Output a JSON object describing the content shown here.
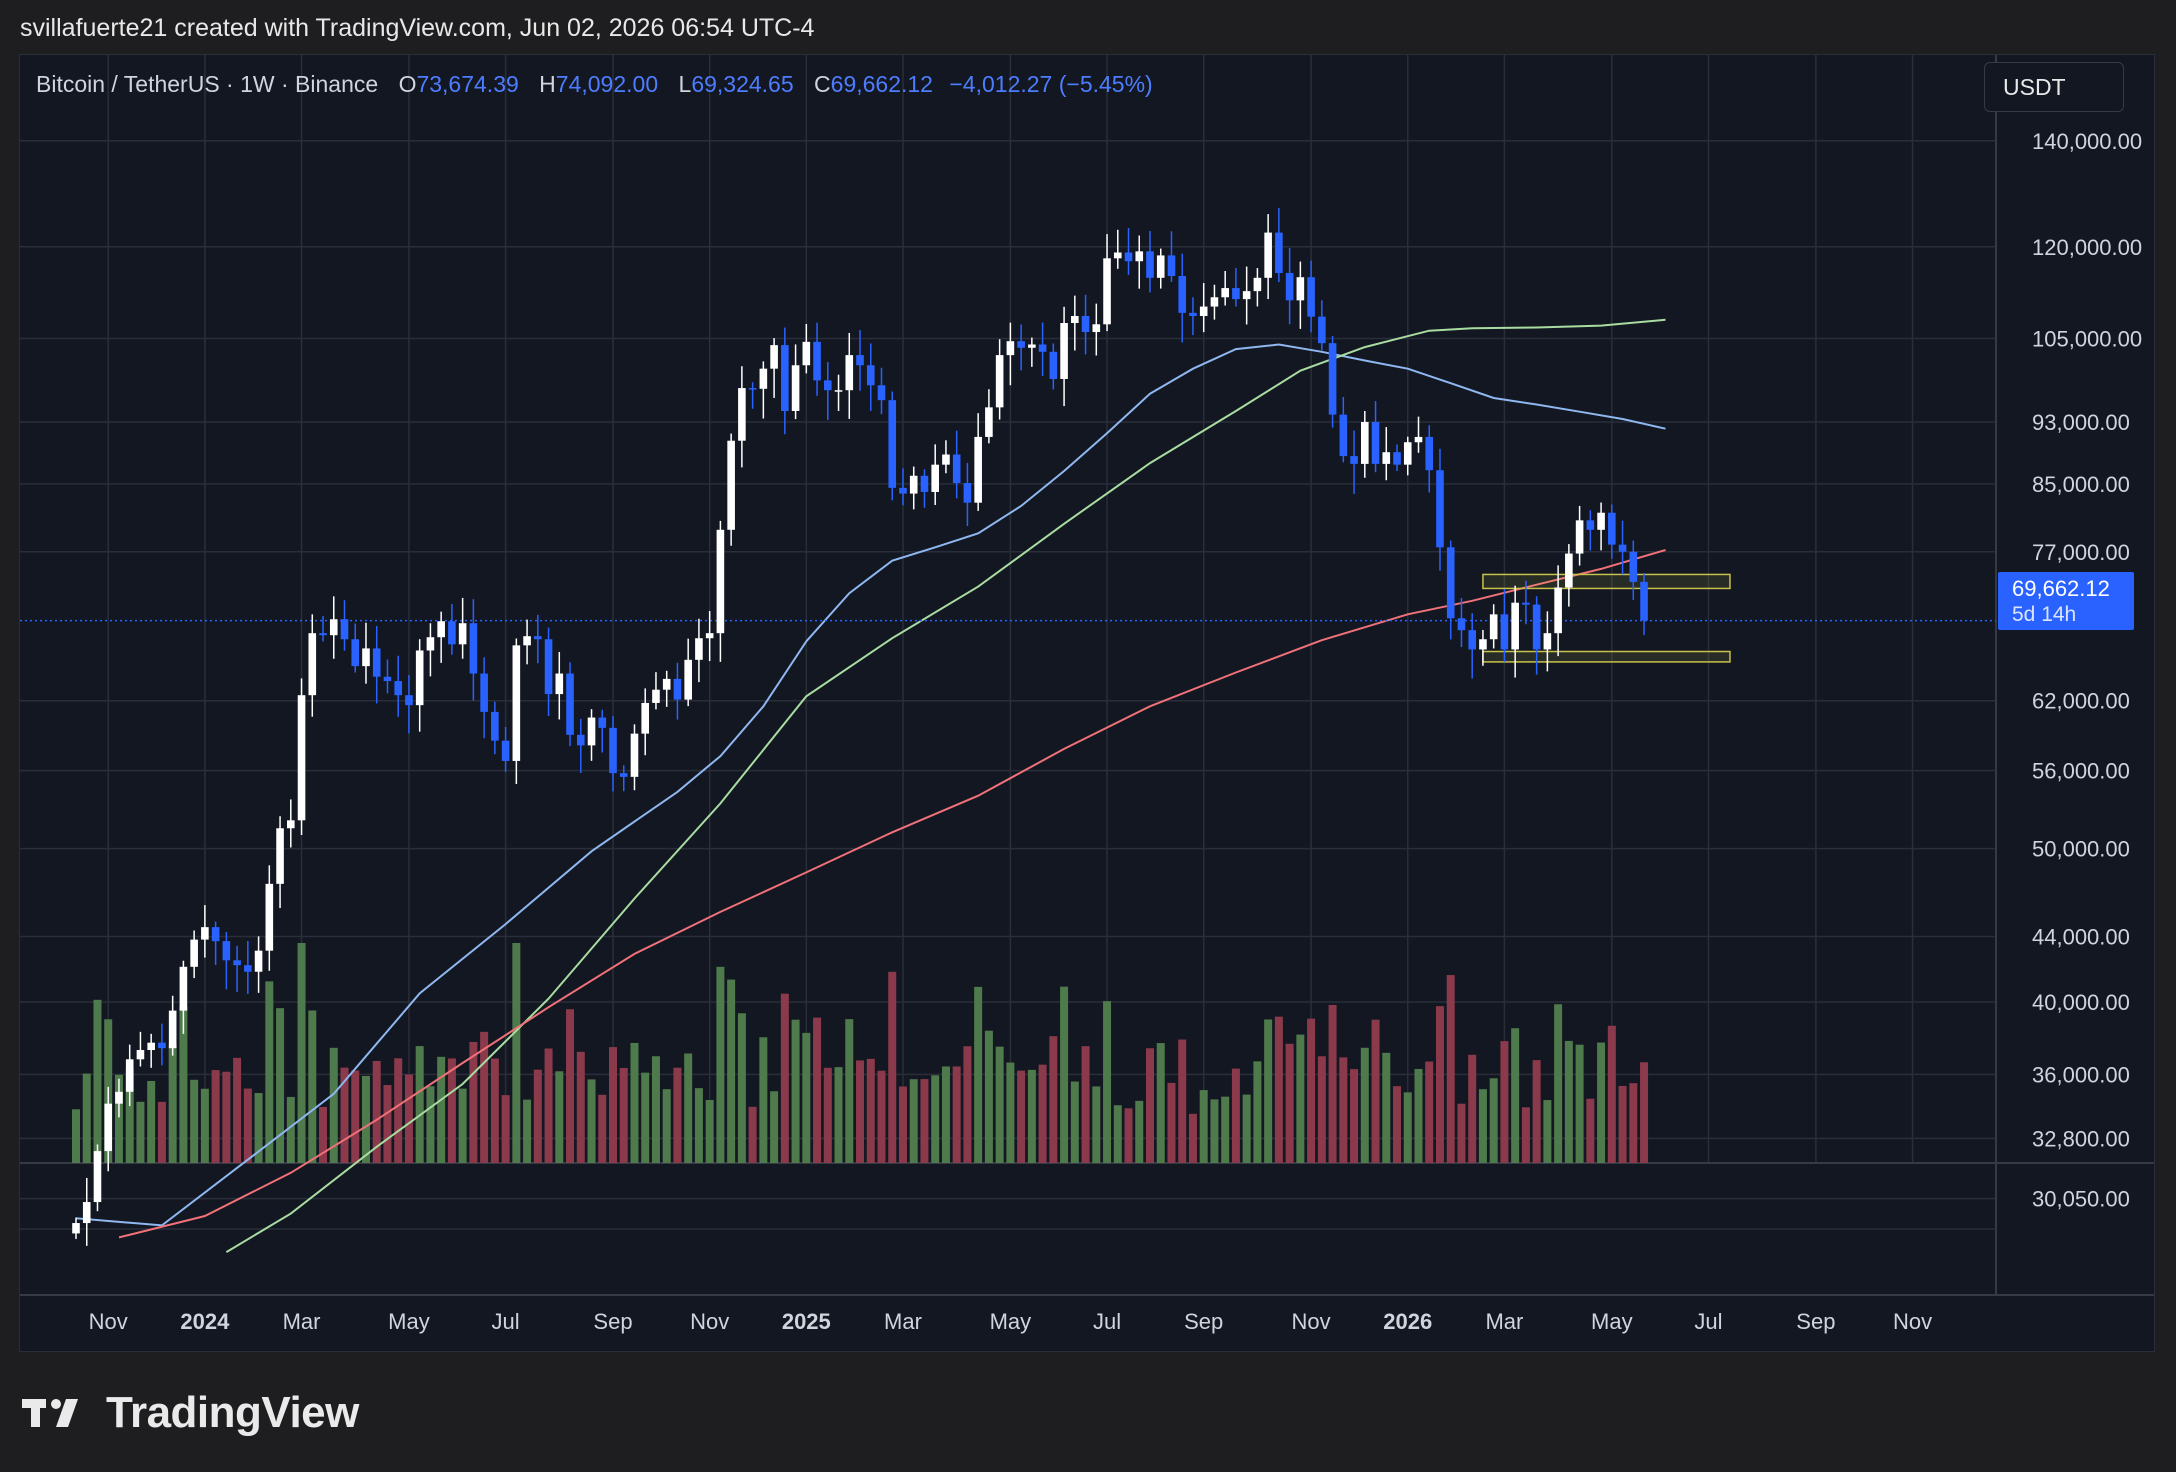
{
  "header": {
    "caption": "svillafuerte21 created with TradingView.com, Jun 02, 2026 06:54 UTC-4"
  },
  "legend": {
    "symbol": "Bitcoin / TetherUS · 1W · Binance",
    "open_label": "O",
    "open": "73,674.39",
    "high_label": "H",
    "high": "74,092.00",
    "low_label": "L",
    "low": "69,324.65",
    "close_label": "C",
    "close": "69,662.12",
    "change": "−4,012.27 (−5.45%)"
  },
  "currency_button": {
    "label": "USDT"
  },
  "price_tag": {
    "price": "69,662.12",
    "countdown": "5d 14h"
  },
  "footer": {
    "brand": "TradingView"
  },
  "colors": {
    "background": "#131722",
    "grid": "#2a2e39",
    "up_candle": "#ffffff",
    "down_candle": "#2962ff",
    "volume_up": "#4f7a4c",
    "volume_down": "#8a3a4a",
    "ma_fast": "#8fb7f0",
    "ma_mid": "#a8dca0",
    "ma_slow": "#f07178",
    "zone": "#c9c24a"
  },
  "chart_data": {
    "type": "candlestick",
    "interval": "1W",
    "scale": "log",
    "ylim": [
      28500,
      160000
    ],
    "y_ticks": [
      "140,000.00",
      "120,000.00",
      "105,000.00",
      "93,000.00",
      "85,000.00",
      "77,000.00",
      "62,000.00",
      "56,000.00",
      "50,000.00",
      "44,000.00",
      "40,000.00",
      "36,000.00",
      "32,800.00",
      "30,050.00"
    ],
    "y_tick_values": [
      140000,
      120000,
      105000,
      93000,
      85000,
      77000,
      62000,
      56000,
      50000,
      44000,
      40000,
      36000,
      32800,
      30050
    ],
    "x_ticks": [
      {
        "label": "Nov",
        "bold": false,
        "week": 3
      },
      {
        "label": "2024",
        "bold": true,
        "week": 12
      },
      {
        "label": "Mar",
        "bold": false,
        "week": 21
      },
      {
        "label": "May",
        "bold": false,
        "week": 31
      },
      {
        "label": "Jul",
        "bold": false,
        "week": 40
      },
      {
        "label": "Sep",
        "bold": false,
        "week": 50
      },
      {
        "label": "Nov",
        "bold": false,
        "week": 59
      },
      {
        "label": "2025",
        "bold": true,
        "week": 68
      },
      {
        "label": "Mar",
        "bold": false,
        "week": 77
      },
      {
        "label": "May",
        "bold": false,
        "week": 87
      },
      {
        "label": "Jul",
        "bold": false,
        "week": 96
      },
      {
        "label": "Sep",
        "bold": false,
        "week": 105
      },
      {
        "label": "Nov",
        "bold": false,
        "week": 115
      },
      {
        "label": "2026",
        "bold": true,
        "week": 124
      },
      {
        "label": "Mar",
        "bold": false,
        "week": 133
      },
      {
        "label": "May",
        "bold": false,
        "week": 143
      },
      {
        "label": "Jul",
        "bold": false,
        "week": 152
      },
      {
        "label": "Sep",
        "bold": false,
        "week": 162
      },
      {
        "label": "Nov",
        "bold": false,
        "week": 171
      }
    ],
    "current_price": 69662.12,
    "closes": [
      29000,
      29900,
      32200,
      34500,
      35100,
      36800,
      37300,
      37700,
      37400,
      39500,
      42100,
      43800,
      44600,
      43700,
      42500,
      42200,
      41800,
      43100,
      47500,
      51500,
      52100,
      62500,
      68400,
      68200,
      69800,
      67800,
      65200,
      66900,
      64200,
      63800,
      62500,
      61600,
      66700,
      68000,
      69600,
      67300,
      69400,
      64500,
      61000,
      58500,
      56800,
      67200,
      68100,
      67800,
      62600,
      64500,
      59000,
      58100,
      60500,
      59600,
      55800,
      55500,
      59100,
      61800,
      63000,
      64000,
      62100,
      65800,
      67900,
      68400,
      79500,
      90500,
      97700,
      97600,
      100500,
      104000,
      94500,
      101000,
      104500,
      98800,
      97400,
      97400,
      102500,
      101000,
      98100,
      96000,
      84500,
      83800,
      86000,
      84000,
      87400,
      88700,
      85100,
      82700,
      91000,
      95000,
      102500,
      104600,
      103600,
      104100,
      103000,
      99000,
      107400,
      108500,
      106000,
      107200,
      118000,
      119000,
      117500,
      119200,
      114700,
      118500,
      115000,
      109000,
      108500,
      110000,
      111500,
      113000,
      111200,
      112500,
      114700,
      122500,
      115500,
      111000,
      114800,
      108400,
      104300,
      94000,
      88500,
      87500,
      93000,
      87500,
      89000,
      87400,
      90300,
      91000,
      86700,
      77500,
      69900,
      68700,
      66800,
      67800,
      70300,
      66800,
      71500,
      71300,
      66800,
      68400,
      73100,
      76800,
      80600,
      79500,
      81500,
      77800,
      77000,
      73700,
      69662
    ],
    "moving_averages": [
      {
        "role": "fast",
        "points": [
          [
            0,
            29200
          ],
          [
            8,
            28900
          ],
          [
            16,
            31800
          ],
          [
            24,
            35000
          ],
          [
            32,
            40500
          ],
          [
            40,
            44800
          ],
          [
            48,
            49800
          ],
          [
            56,
            54300
          ],
          [
            60,
            57200
          ],
          [
            64,
            61500
          ],
          [
            68,
            67600
          ],
          [
            72,
            72500
          ],
          [
            76,
            76000
          ],
          [
            80,
            77500
          ],
          [
            84,
            79100
          ],
          [
            88,
            82300
          ],
          [
            92,
            86600
          ],
          [
            96,
            91500
          ],
          [
            100,
            96900
          ],
          [
            104,
            100500
          ],
          [
            108,
            103400
          ],
          [
            112,
            104100
          ],
          [
            116,
            103000
          ],
          [
            120,
            101700
          ],
          [
            124,
            100500
          ],
          [
            128,
            98400
          ],
          [
            132,
            96300
          ],
          [
            136,
            95400
          ],
          [
            140,
            94400
          ],
          [
            144,
            93400
          ],
          [
            148,
            92100
          ]
        ]
      },
      {
        "role": "mid",
        "points": [
          [
            14,
            27800
          ],
          [
            20,
            29400
          ],
          [
            28,
            32400
          ],
          [
            36,
            35500
          ],
          [
            44,
            40200
          ],
          [
            52,
            46500
          ],
          [
            60,
            53400
          ],
          [
            68,
            62400
          ],
          [
            76,
            67900
          ],
          [
            84,
            73200
          ],
          [
            92,
            80200
          ],
          [
            100,
            87600
          ],
          [
            108,
            94500
          ],
          [
            114,
            100200
          ],
          [
            120,
            103700
          ],
          [
            126,
            106200
          ],
          [
            130,
            106600
          ],
          [
            136,
            106700
          ],
          [
            142,
            107000
          ],
          [
            148,
            107900
          ]
        ]
      },
      {
        "role": "slow",
        "points": [
          [
            4,
            28400
          ],
          [
            12,
            29300
          ],
          [
            20,
            31200
          ],
          [
            28,
            33700
          ],
          [
            36,
            36600
          ],
          [
            44,
            39700
          ],
          [
            52,
            42900
          ],
          [
            60,
            45600
          ],
          [
            68,
            48300
          ],
          [
            76,
            51200
          ],
          [
            84,
            54000
          ],
          [
            92,
            57800
          ],
          [
            100,
            61500
          ],
          [
            108,
            64600
          ],
          [
            116,
            67700
          ],
          [
            124,
            70300
          ],
          [
            130,
            71700
          ],
          [
            136,
            73400
          ],
          [
            142,
            75100
          ],
          [
            148,
            77200
          ]
        ]
      }
    ],
    "zones": [
      {
        "from_week": 131,
        "to_week": 154,
        "low": 73000,
        "high": 74500
      },
      {
        "from_week": 131,
        "to_week": 154,
        "low": 65600,
        "high": 66600
      }
    ]
  }
}
